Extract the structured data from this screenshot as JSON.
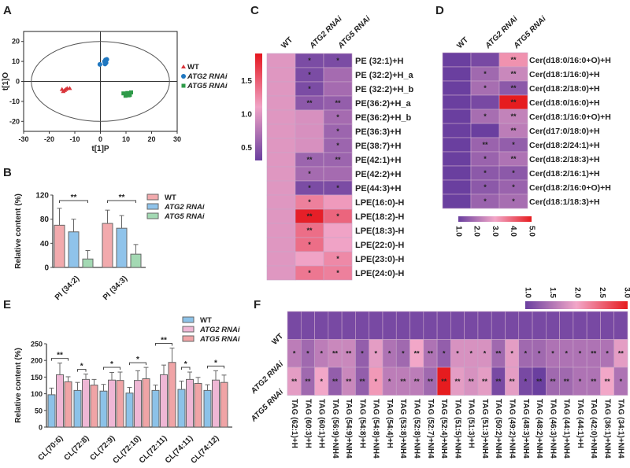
{
  "panel_letters": [
    "A",
    "B",
    "C",
    "D",
    "E",
    "F"
  ],
  "chart_data": [
    {
      "panel": "A",
      "type": "scatter",
      "xlabel": "t[1]P",
      "ylabel": "t[1]O",
      "xlim": [
        -30,
        30
      ],
      "ylim": [
        -25,
        25
      ],
      "xticks": [
        "-30",
        "-20",
        "-10",
        "0",
        "10",
        "20",
        "30"
      ],
      "yticks": [
        "20",
        "10",
        "0",
        "-10",
        "-20"
      ],
      "ellipse": {
        "rx": 27,
        "ry": 20
      },
      "series": [
        {
          "name": "WT",
          "color": "#d9343a",
          "marker": "triangle",
          "points": [
            [
              -15,
              -4
            ],
            [
              -14,
              -4.5
            ],
            [
              -13.5,
              -4
            ],
            [
              -13,
              -3.5
            ],
            [
              -12,
              -3.5
            ],
            [
              -14.5,
              -5
            ]
          ]
        },
        {
          "name": "ATG2 RNAi",
          "color": "#1f77c0",
          "marker": "circle",
          "points": [
            [
              -0.2,
              8.5
            ],
            [
              1.8,
              8.7
            ],
            [
              2.2,
              9.3
            ],
            [
              2,
              10.8
            ],
            [
              1.6,
              10
            ],
            [
              2.5,
              11
            ]
          ]
        },
        {
          "name": "ATG5 RNAi",
          "color": "#2e9a48",
          "marker": "square",
          "points": [
            [
              9,
              -6
            ],
            [
              10,
              -6.5
            ],
            [
              11,
              -7
            ],
            [
              12,
              -5.5
            ],
            [
              10.5,
              -5.8
            ],
            [
              11.5,
              -6.8
            ],
            [
              9.8,
              -7.2
            ]
          ]
        }
      ]
    },
    {
      "panel": "B",
      "type": "bar",
      "ylabel": "Relative content (%)",
      "ylim": [
        0,
        120
      ],
      "yticks": [
        "0",
        "40",
        "80",
        "120"
      ],
      "categories": [
        "PI (34:2)",
        "PI (34:3)"
      ],
      "series": [
        {
          "name": "WT",
          "color": "#f2aaad",
          "values": [
            70,
            73
          ],
          "errors": [
            28,
            22
          ]
        },
        {
          "name": "ATG2 RNAi",
          "color": "#8fc3ea",
          "values": [
            59,
            65
          ],
          "errors": [
            21,
            21
          ]
        },
        {
          "name": "ATG5 RNAi",
          "color": "#a3d9b3",
          "values": [
            14,
            22
          ],
          "errors": [
            14,
            16
          ]
        }
      ],
      "significance": [
        {
          "category": 0,
          "from": 0,
          "to": 2,
          "label": "**"
        },
        {
          "category": 1,
          "from": 0,
          "to": 2,
          "label": "**"
        }
      ]
    },
    {
      "panel": "C",
      "type": "heatmap",
      "columns": [
        "WT",
        "ATG2 RNAi",
        "ATG5 RNAi"
      ],
      "rows": [
        "PE (32:1)+H",
        "PE (32:2)+H_a",
        "PE (32:2)+H_b",
        "PE(36:2)+H_a",
        "PE(36:2)+H_b",
        "PE(36:3)+H",
        "PE(38:7)+H",
        "PE(42:1)+H",
        "PE(42:2)+H",
        "PE(44:3)+H",
        "LPE(16:0)-H",
        "LPE(18:2)-H",
        "LPE(18:3)-H",
        "LPE(22:0)-H",
        "LPE(23:0)-H",
        "LPE(24:0)-H"
      ],
      "values": [
        [
          1,
          1,
          1,
          1,
          1,
          1,
          1,
          1,
          1,
          1,
          1,
          1,
          1,
          1,
          1,
          1
        ],
        [
          0.4,
          0.4,
          0.4,
          0.5,
          0.95,
          0.95,
          0.95,
          0.6,
          0.65,
          0.4,
          1.3,
          1.85,
          1.4,
          1.4,
          1.1,
          1.35
        ],
        [
          0.4,
          0.65,
          0.65,
          0.55,
          0.65,
          0.6,
          0.6,
          0.6,
          0.65,
          0.4,
          1.15,
          1.45,
          1.1,
          1.1,
          1.25,
          1.3
        ]
      ],
      "stars": [
        [
          "",
          "",
          "",
          "",
          "",
          "",
          "",
          "",
          "",
          "",
          "",
          "",
          "",
          "",
          "",
          ""
        ],
        [
          "*",
          "*",
          "*",
          "**",
          "",
          "",
          "",
          "**",
          "*",
          "*",
          "*",
          "**",
          "**",
          "*",
          "",
          "*"
        ],
        [
          "*",
          "",
          "",
          "**",
          "*",
          "*",
          "*",
          "**",
          "",
          "*",
          "",
          "*",
          "",
          "",
          "*",
          "*"
        ]
      ],
      "colorbar": {
        "range": [
          0.3,
          1.9
        ],
        "ticks": [
          "1.5",
          "1.0",
          "0.5"
        ],
        "colors": [
          "#6a3f9f",
          "#f0a3c6",
          "#e5161e"
        ]
      }
    },
    {
      "panel": "D",
      "type": "heatmap",
      "columns": [
        "WT",
        "ATG2 RNAi",
        "ATG5 RNAi"
      ],
      "rows": [
        "Cer(d18:0/16:0+O)+H",
        "Cer(d18:1/16:0)+H",
        "Cer(d18:2/18:0)+H",
        "Cer(d18:0/16:0)+H",
        "Cer(d18:1/16:0+O)+H",
        "Cer(d17:0/18:0)+H",
        "Cer(d18:2/24:1)+H",
        "Cer(d18:2/18:3)+H",
        "Cer(d18:2/16:1)+H",
        "Cer(d18:2/16:0+O)+H",
        "Cer(d18:1/18:3)+H"
      ],
      "values": [
        [
          1,
          1,
          1,
          1,
          1,
          1,
          1,
          1,
          1,
          1,
          1
        ],
        [
          1.2,
          1.8,
          1.9,
          1.2,
          1.9,
          1.0,
          1.7,
          1.7,
          1.5,
          1.5,
          1.7
        ],
        [
          3.3,
          2.4,
          1.5,
          5.0,
          2.3,
          2.2,
          1.6,
          2.0,
          1.5,
          1.7,
          1.9
        ]
      ],
      "stars": [
        [
          "",
          "",
          "",
          "",
          "",
          "",
          "",
          "",
          "",
          "",
          ""
        ],
        [
          "",
          "*",
          "*",
          "",
          "*",
          "",
          "**",
          "*",
          "*",
          "*",
          "*"
        ],
        [
          "**",
          "**",
          "**",
          "**",
          "**",
          "**",
          "*",
          "**",
          "*",
          "*",
          "*"
        ]
      ],
      "colorbar": {
        "range": [
          1,
          5
        ],
        "ticks": [
          "1.0",
          "2.0",
          "3.0",
          "4.0",
          "5.0"
        ],
        "colors": [
          "#6a3f9f",
          "#f2a7c8",
          "#e61c1f"
        ]
      }
    },
    {
      "panel": "E",
      "type": "bar",
      "ylabel": "Relative content (%)",
      "ylim": [
        0,
        250
      ],
      "yticks": [
        "0",
        "50",
        "100",
        "150",
        "200",
        "250"
      ],
      "categories": [
        "CL(70:6)",
        "CL(72:8)",
        "CL(72:9)",
        "CL(72:10)",
        "CL(72:11)",
        "CL(74:11)",
        "CL(74:12)"
      ],
      "series": [
        {
          "name": "WT",
          "color": "#8cc2e8",
          "values": [
            97,
            110,
            108,
            102,
            110,
            113,
            110
          ],
          "errors": [
            20,
            24,
            20,
            17,
            16,
            25,
            17
          ]
        },
        {
          "name": "ATG2 RNAi",
          "color": "#efb7d5",
          "values": [
            157,
            143,
            141,
            140,
            157,
            143,
            141
          ],
          "errors": [
            35,
            16,
            23,
            29,
            29,
            22,
            28
          ]
        },
        {
          "name": "ATG5 RNAi",
          "color": "#f0a4a6",
          "values": [
            136,
            126,
            140,
            145,
            194,
            131,
            134
          ],
          "errors": [
            15,
            17,
            25,
            34,
            43,
            18,
            22
          ]
        }
      ],
      "significance": [
        {
          "category": 0,
          "from": 0,
          "to": 2,
          "label": "**"
        },
        {
          "category": 1,
          "from": 0,
          "to": 1,
          "label": "*"
        },
        {
          "category": 2,
          "from": 0,
          "to": 2,
          "label": "*"
        },
        {
          "category": 3,
          "from": 0,
          "to": 2,
          "label": "*"
        },
        {
          "category": 4,
          "from": 0,
          "to": 2,
          "label": "**"
        },
        {
          "category": 5,
          "from": 0,
          "to": 1,
          "label": "*"
        },
        {
          "category": 6,
          "from": 0,
          "to": 2,
          "label": "*"
        }
      ]
    },
    {
      "panel": "F",
      "type": "heatmap",
      "rows": [
        "WT",
        "ATG2 RNAi",
        "ATG5 RNAi"
      ],
      "columns": [
        "TAG (62:1)+H",
        "TAG (60:3)+H",
        "TAG (60:1)+H",
        "TAG (56:9)+NH4",
        "TAG (54:9)+NH4",
        "TAG (54:8)+H",
        "TAG (54:8)+NH4",
        "TAG (54:4)+H",
        "TAG (53:8)+NH4",
        "TAG (52:8)+NH4",
        "TAG (52:7)+NH4",
        "TAG (52:4)+NH4",
        "TAG (51:5)+NH4",
        "TAG (51:3)+H",
        "TAG (51:3)+NH4",
        "TAG (50:2)+NH4",
        "TAG (49:2)+NH4",
        "TAG (48:3)+NH4",
        "TAG (48:2)+NH4",
        "TAG (46:3)+NH4",
        "TAG (44:1)+NH4",
        "TAG (44:1)+H",
        "TAG (42:0)+NH4",
        "TAG (36:1)+NH4",
        "TAG (34:1)+NH4"
      ],
      "values": [
        [
          1.1,
          1.1,
          1.1,
          1.1,
          1.1,
          1.1,
          1.1,
          1.1,
          1.1,
          1.1,
          1.1,
          1.1,
          1.1,
          1.1,
          1.1,
          1.1,
          1.1,
          1.1,
          1.1,
          1.1,
          1.1,
          1.1,
          1.1,
          1.1,
          1.1
        ],
        [
          1.6,
          1.4,
          1.6,
          1.7,
          1.7,
          1.3,
          1.9,
          1.5,
          1.4,
          2.0,
          1.5,
          1.3,
          1.8,
          1.8,
          1.8,
          1.4,
          1.9,
          1.4,
          1.4,
          1.5,
          1.5,
          1.5,
          1.5,
          1.5,
          1.9
        ],
        [
          1.9,
          1.4,
          2.0,
          1.3,
          1.7,
          1.3,
          2.1,
          1.6,
          1.6,
          1.6,
          1.4,
          3.0,
          1.9,
          1.8,
          1.9,
          1.1,
          1.9,
          1.1,
          1.0,
          1.4,
          1.4,
          1.5,
          1.5,
          2.0,
          1.5
        ]
      ],
      "stars": [
        [
          "",
          "",
          "",
          "",
          "",
          "",
          "",
          "",
          "",
          "",
          "",
          "",
          "",
          "",
          "",
          "",
          "",
          "",
          "",
          "",
          "",
          "",
          "",
          "",
          ""
        ],
        [
          "*",
          "*",
          "*",
          "**",
          "**",
          "*",
          "*",
          "*",
          "*",
          "**",
          "**",
          "*",
          "*",
          "*",
          "*",
          "**",
          "*",
          "*",
          "*",
          "*",
          "*",
          "*",
          "**",
          "*",
          "**"
        ],
        [
          "**",
          "**",
          "*",
          "**",
          "**",
          "**",
          "*",
          "*",
          "**",
          "**",
          "**",
          "**",
          "**",
          "**",
          "**",
          "**",
          "**",
          "*",
          "**",
          "**",
          "**",
          "*",
          "**",
          "**",
          "*"
        ]
      ],
      "colorbar": {
        "range": [
          1,
          3
        ],
        "ticks": [
          "1.0",
          "1.5",
          "2.0",
          "2.5",
          "3.0"
        ],
        "colors": [
          "#6a3f9f",
          "#f2a7c8",
          "#e61c1f"
        ]
      }
    }
  ]
}
